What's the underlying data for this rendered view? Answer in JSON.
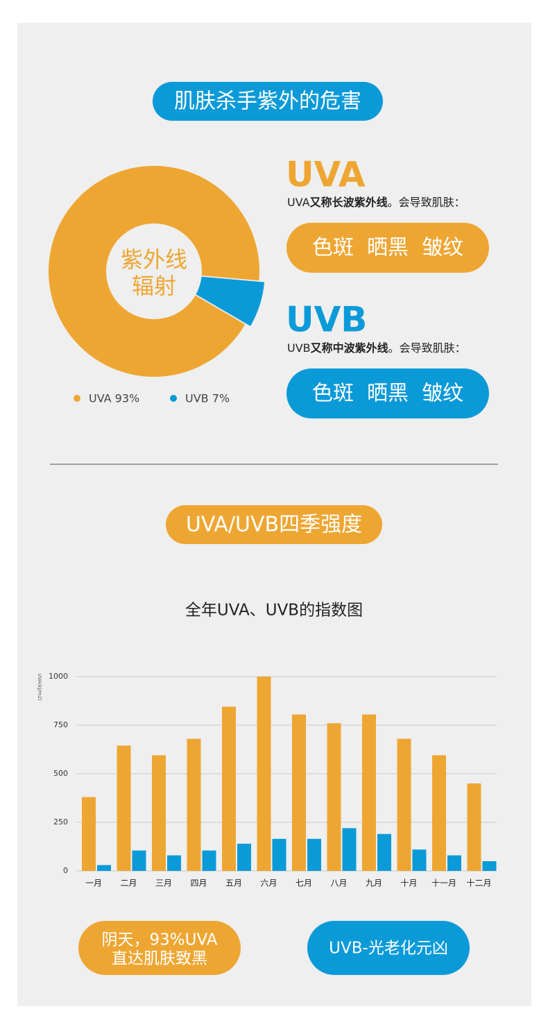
{
  "header": {
    "title": "肌肤杀手紫外的危害"
  },
  "uva": {
    "heading": "UVA",
    "desc": [
      "UVA",
      "又称长波紫外线",
      "。会导致肌肤："
    ],
    "effects": "色斑  晒黑  皱纹"
  },
  "uvb": {
    "heading": "UVB",
    "desc": [
      "UVB",
      "又称中波紫外线",
      "。会导致肌肤："
    ],
    "effects": "色斑  晒黑  皱纹"
  },
  "section2": {
    "title": "UVA/UVB四季强度"
  },
  "notes": {
    "left": [
      "阴天，93%UVA",
      "直达肌肤致黑"
    ],
    "right": "UVB-光老化元凶"
  },
  "chart_data": [
    {
      "type": "pie",
      "center_text": [
        "紫外线",
        "辐射"
      ],
      "categories": [
        "UVA 93%",
        "UVB 7%"
      ],
      "values": [
        93,
        7
      ],
      "colors": [
        "#eea633",
        "#0b9ad8"
      ]
    },
    {
      "type": "bar",
      "title": "全年UVA、UVB的指数图",
      "y_label": "UVA(kj/m2)",
      "categories": [
        "一月",
        "二月",
        "三月",
        "四月",
        "五月",
        "六月",
        "七月",
        "八月",
        "九月",
        "十月",
        "十一月",
        "十二月"
      ],
      "series": [
        {
          "name": "UVA",
          "color": "#eea633",
          "values": [
            380,
            645,
            595,
            680,
            845,
            1000,
            805,
            760,
            805,
            680,
            595,
            450
          ]
        },
        {
          "name": "UVB",
          "color": "#0b9ad8",
          "values": [
            30,
            105,
            80,
            105,
            140,
            165,
            165,
            220,
            190,
            110,
            80,
            50
          ]
        }
      ],
      "ylim": [
        0,
        1000
      ],
      "yticks": [
        0,
        250,
        500,
        750,
        1000
      ],
      "grid": true
    }
  ]
}
